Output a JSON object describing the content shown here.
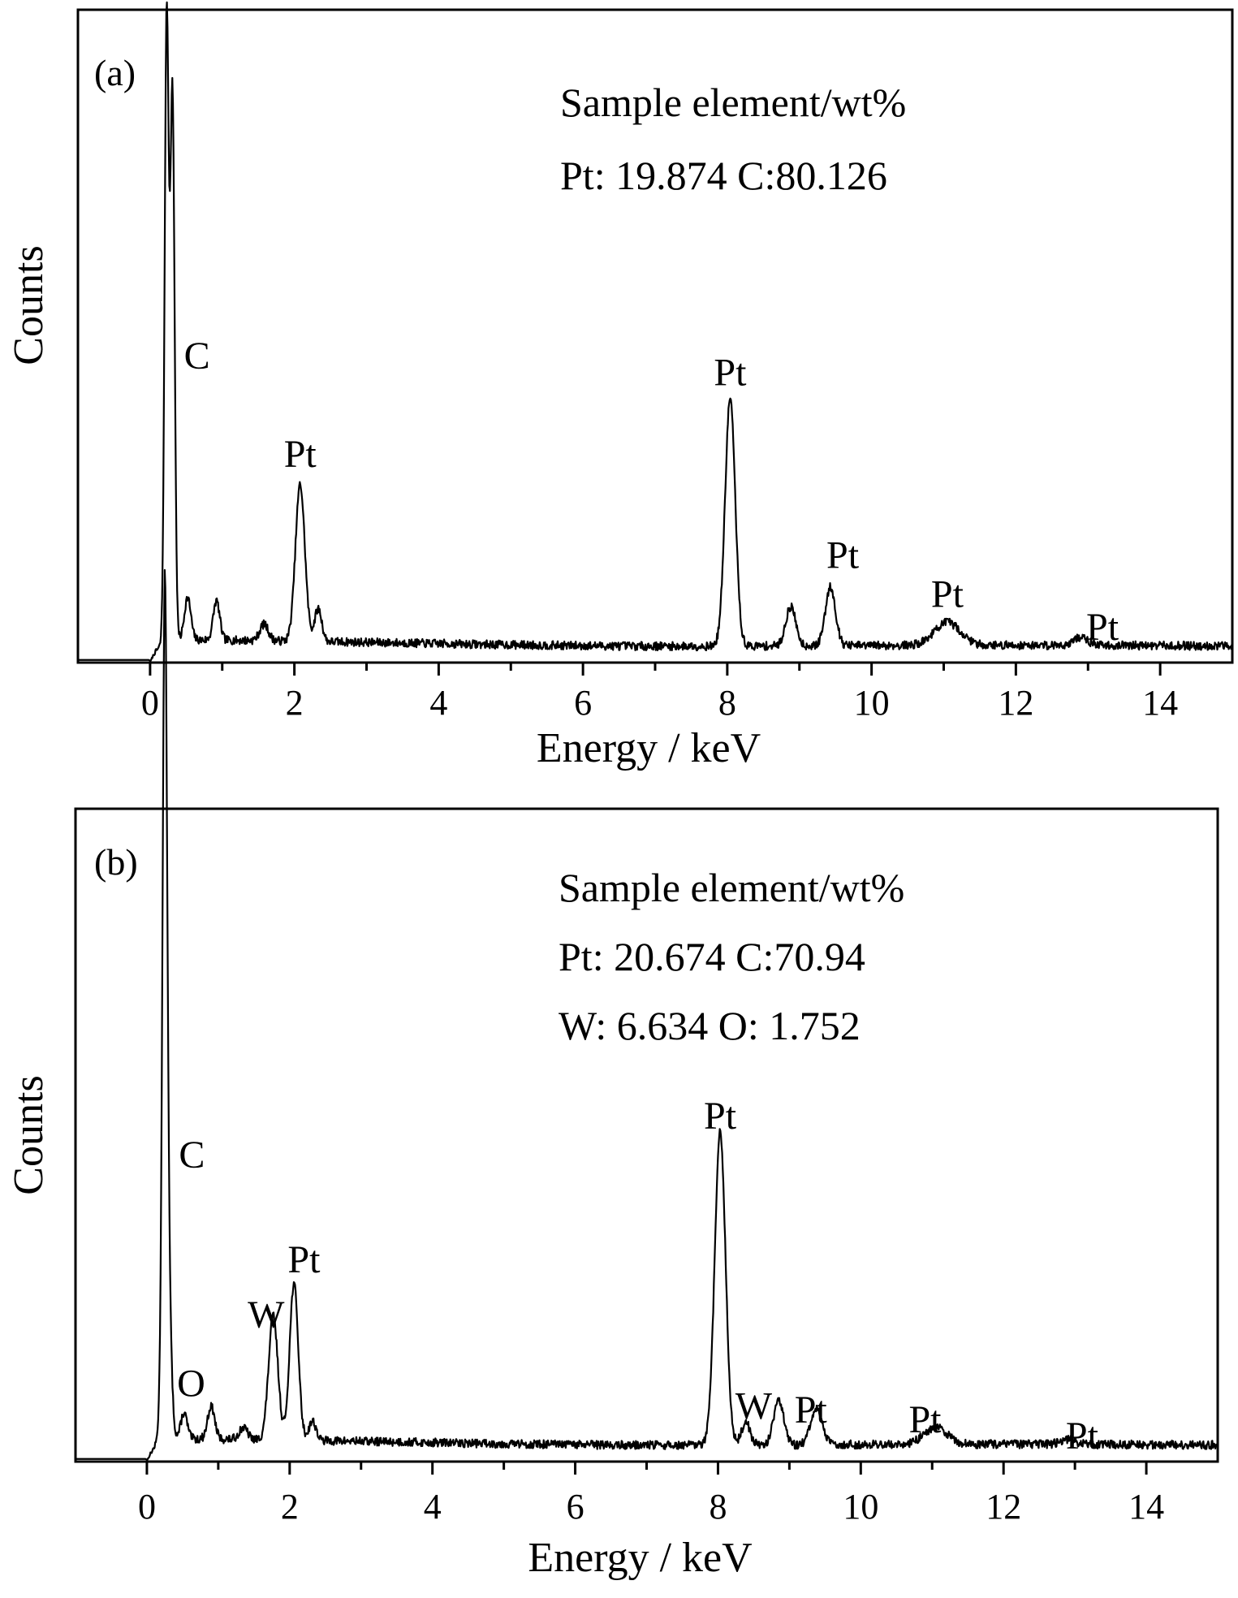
{
  "chart_data": [
    {
      "type": "line",
      "panel_label": "(a)",
      "xlabel": "Energy / keV",
      "ylabel": "Counts",
      "xlim": [
        -1,
        15
      ],
      "ylim": [
        0,
        100
      ],
      "xticks": [
        0,
        2,
        4,
        6,
        8,
        10,
        12,
        14
      ],
      "info_lines": [
        "Sample element/wt%",
        "Pt: 19.874  C:80.126"
      ],
      "peaks": [
        {
          "x": 0.23,
          "height": 96,
          "width": 0.028
        },
        {
          "x": 0.31,
          "height": 84,
          "width": 0.03
        },
        {
          "x": 0.52,
          "height": 6.5,
          "width": 0.045
        },
        {
          "x": 0.92,
          "height": 6,
          "width": 0.045
        },
        {
          "x": 1.58,
          "height": 2.5,
          "width": 0.06
        },
        {
          "x": 2.08,
          "height": 24,
          "width": 0.065
        },
        {
          "x": 2.33,
          "height": 5,
          "width": 0.05
        },
        {
          "x": 8.04,
          "height": 38,
          "width": 0.07
        },
        {
          "x": 8.88,
          "height": 6,
          "width": 0.07
        },
        {
          "x": 9.43,
          "height": 9,
          "width": 0.07
        },
        {
          "x": 11.05,
          "height": 3.5,
          "width": 0.18
        },
        {
          "x": 12.9,
          "height": 1.2,
          "width": 0.1
        }
      ],
      "annotations": [
        {
          "text": "C",
          "x": 0.65,
          "y": 45
        },
        {
          "text": "Pt",
          "x": 2.08,
          "y": 30
        },
        {
          "text": "Pt",
          "x": 8.04,
          "y": 42.5
        },
        {
          "text": "Pt",
          "x": 9.6,
          "y": 14.5
        },
        {
          "text": "Pt",
          "x": 11.05,
          "y": 8.5
        },
        {
          "text": "Pt",
          "x": 13.2,
          "y": 3.5
        }
      ]
    },
    {
      "type": "line",
      "panel_label": "(b)",
      "xlabel": "Energy / keV",
      "ylabel": "Counts",
      "xlim": [
        -1,
        15
      ],
      "ylim": [
        0,
        100
      ],
      "xticks": [
        0,
        2,
        4,
        6,
        8,
        10,
        12,
        14
      ],
      "info_lines": [
        "Sample element/wt%",
        "Pt: 20.674  C:70.94",
        "W: 6.634   O: 1.752"
      ],
      "peaks": [
        {
          "x": 0.25,
          "height": 96,
          "width": 0.03
        },
        {
          "x": 0.27,
          "height": 40,
          "width": 0.05
        },
        {
          "x": 0.52,
          "height": 4,
          "width": 0.045
        },
        {
          "x": 0.9,
          "height": 5,
          "width": 0.05
        },
        {
          "x": 1.35,
          "height": 1.8,
          "width": 0.06
        },
        {
          "x": 1.77,
          "height": 19,
          "width": 0.065
        },
        {
          "x": 2.06,
          "height": 24,
          "width": 0.06
        },
        {
          "x": 2.32,
          "height": 3,
          "width": 0.05
        },
        {
          "x": 8.03,
          "height": 48,
          "width": 0.075
        },
        {
          "x": 8.39,
          "height": 3.5,
          "width": 0.06
        },
        {
          "x": 8.85,
          "height": 7,
          "width": 0.07
        },
        {
          "x": 9.38,
          "height": 5.5,
          "width": 0.08
        },
        {
          "x": 11.05,
          "height": 2.6,
          "width": 0.16
        },
        {
          "x": 12.9,
          "height": 0.8,
          "width": 0.1
        }
      ],
      "annotations": [
        {
          "text": "C",
          "x": 0.63,
          "y": 45
        },
        {
          "text": "O",
          "x": 0.62,
          "y": 10
        },
        {
          "text": "W",
          "x": 1.67,
          "y": 20.5
        },
        {
          "text": "Pt",
          "x": 2.2,
          "y": 29
        },
        {
          "text": "Pt",
          "x": 8.03,
          "y": 51
        },
        {
          "text": "W",
          "x": 8.5,
          "y": 6.5
        },
        {
          "text": "Pt",
          "x": 9.3,
          "y": 6
        },
        {
          "text": "Pt",
          "x": 10.9,
          "y": 4.5
        },
        {
          "text": "Pt",
          "x": 13.1,
          "y": 2
        }
      ]
    }
  ]
}
